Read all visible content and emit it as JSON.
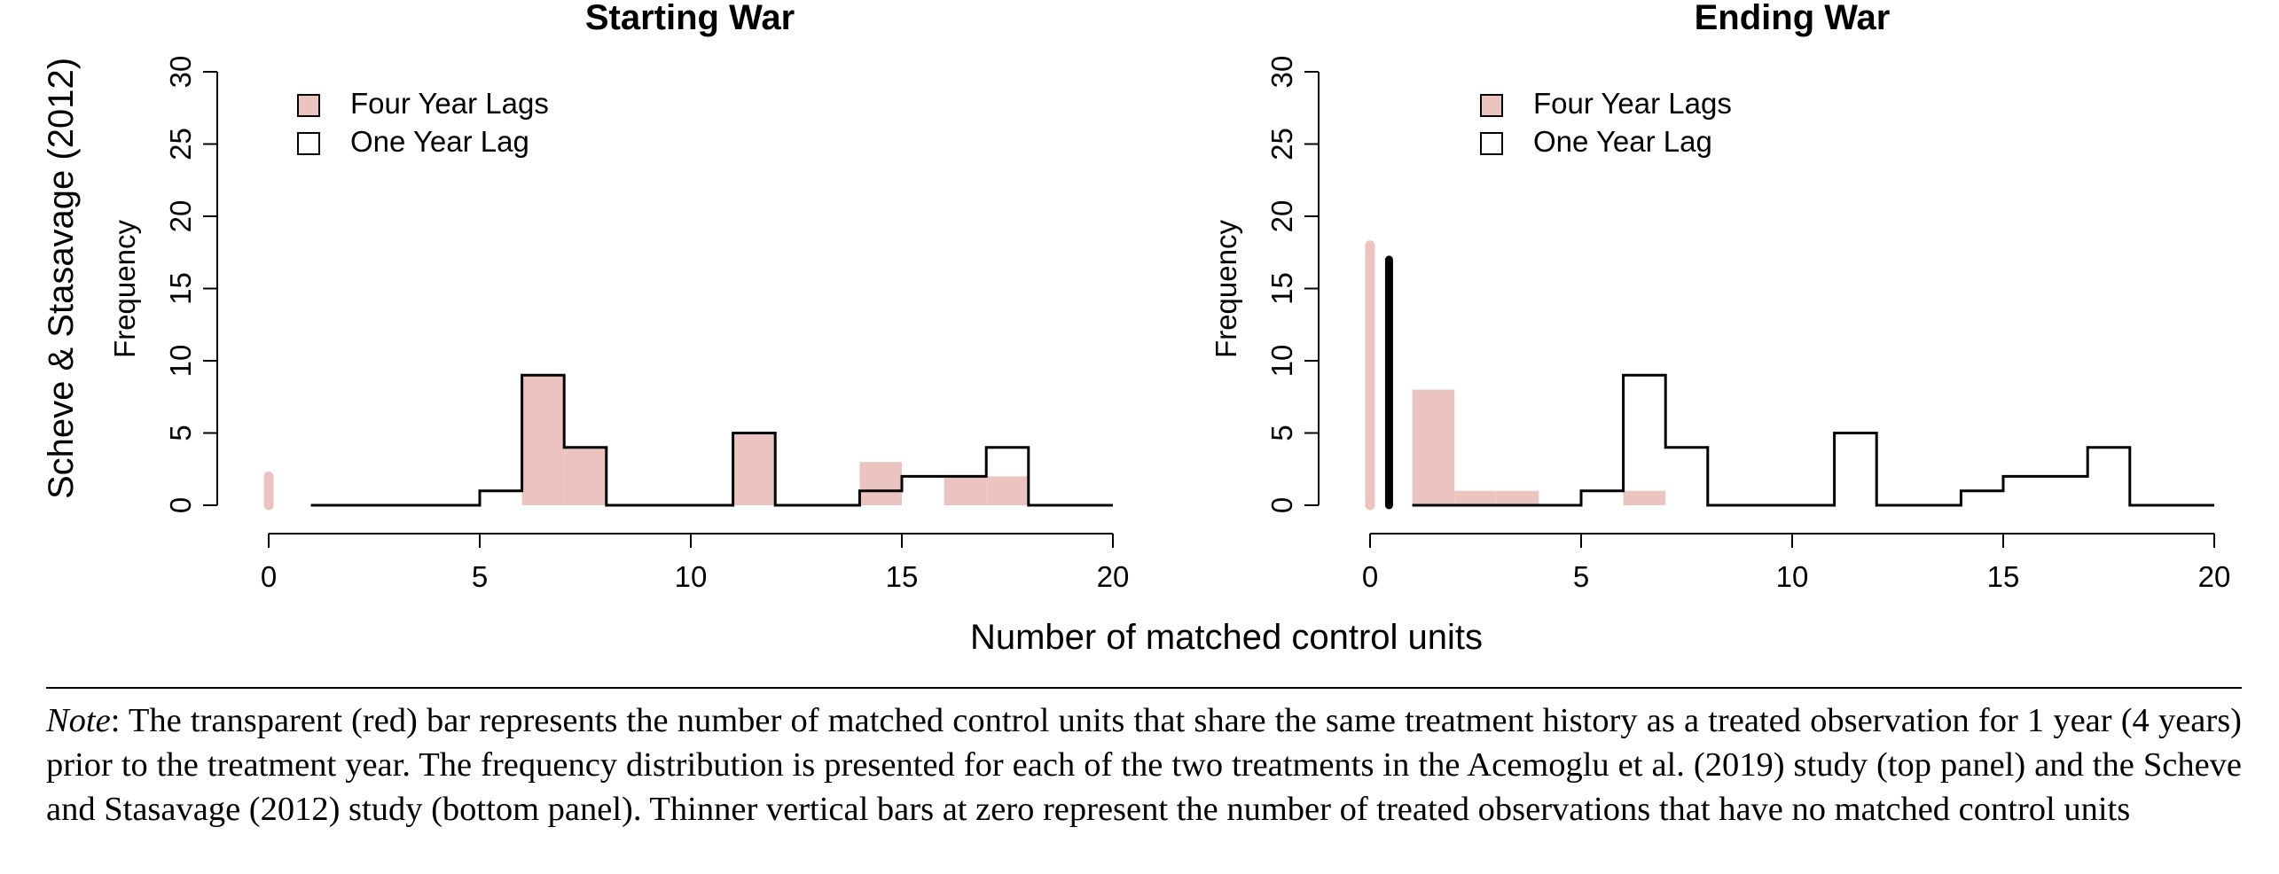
{
  "row_label": "Scheve & Stasavage (2012)",
  "shared_xlabel": "Number of matched control units",
  "colors": {
    "four_year_fill": "#ebc4c0",
    "one_year_stroke": "#000000",
    "axis": "#000000"
  },
  "chart_data": [
    {
      "type": "histogram",
      "title": "Starting War",
      "ylabel": "Frequency",
      "xlim": [
        0,
        20
      ],
      "ylim": [
        0,
        30
      ],
      "xticks": [
        0,
        5,
        10,
        15,
        20
      ],
      "yticks": [
        0,
        5,
        10,
        15,
        20,
        25,
        30
      ],
      "legend": {
        "position": "top-left",
        "entries": [
          "Four Year Lags",
          "One Year Lag"
        ]
      },
      "series": [
        {
          "name": "Four Year Lags",
          "style": "filled",
          "bins": [
            {
              "x0": 5,
              "x1": 6,
              "count": 0
            },
            {
              "x0": 6,
              "x1": 7,
              "count": 9
            },
            {
              "x0": 7,
              "x1": 8,
              "count": 4
            },
            {
              "x0": 11,
              "x1": 12,
              "count": 5
            },
            {
              "x0": 14,
              "x1": 15,
              "count": 3
            },
            {
              "x0": 16,
              "x1": 17,
              "count": 2
            },
            {
              "x0": 17,
              "x1": 18,
              "count": 2
            }
          ],
          "zero_bar": 2
        },
        {
          "name": "One Year Lag",
          "style": "outline",
          "bins": [
            {
              "x0": 1,
              "x1": 2,
              "count": 0
            },
            {
              "x0": 2,
              "x1": 3,
              "count": 0
            },
            {
              "x0": 3,
              "x1": 4,
              "count": 0
            },
            {
              "x0": 4,
              "x1": 5,
              "count": 0
            },
            {
              "x0": 5,
              "x1": 6,
              "count": 1
            },
            {
              "x0": 6,
              "x1": 7,
              "count": 9
            },
            {
              "x0": 7,
              "x1": 8,
              "count": 4
            },
            {
              "x0": 8,
              "x1": 9,
              "count": 0
            },
            {
              "x0": 9,
              "x1": 10,
              "count": 0
            },
            {
              "x0": 10,
              "x1": 11,
              "count": 0
            },
            {
              "x0": 11,
              "x1": 12,
              "count": 5
            },
            {
              "x0": 12,
              "x1": 13,
              "count": 0
            },
            {
              "x0": 13,
              "x1": 14,
              "count": 0
            },
            {
              "x0": 14,
              "x1": 15,
              "count": 1
            },
            {
              "x0": 15,
              "x1": 16,
              "count": 2
            },
            {
              "x0": 16,
              "x1": 17,
              "count": 2
            },
            {
              "x0": 17,
              "x1": 18,
              "count": 4
            },
            {
              "x0": 18,
              "x1": 19,
              "count": 0
            },
            {
              "x0": 19,
              "x1": 20,
              "count": 0
            }
          ],
          "zero_bar": 0
        }
      ]
    },
    {
      "type": "histogram",
      "title": "Ending War",
      "ylabel": "Frequency",
      "xlim": [
        0,
        20
      ],
      "ylim": [
        0,
        30
      ],
      "xticks": [
        0,
        5,
        10,
        15,
        20
      ],
      "yticks": [
        0,
        5,
        10,
        15,
        20,
        25,
        30
      ],
      "legend": {
        "position": "top-left",
        "entries": [
          "Four Year Lags",
          "One Year Lag"
        ]
      },
      "series": [
        {
          "name": "Four Year Lags",
          "style": "filled",
          "bins": [
            {
              "x0": 1,
              "x1": 2,
              "count": 8
            },
            {
              "x0": 2,
              "x1": 3,
              "count": 1
            },
            {
              "x0": 3,
              "x1": 4,
              "count": 1
            },
            {
              "x0": 6,
              "x1": 7,
              "count": 1
            }
          ],
          "zero_bar": 18
        },
        {
          "name": "One Year Lag",
          "style": "outline",
          "bins": [
            {
              "x0": 1,
              "x1": 2,
              "count": 0
            },
            {
              "x0": 2,
              "x1": 3,
              "count": 0
            },
            {
              "x0": 3,
              "x1": 4,
              "count": 0
            },
            {
              "x0": 4,
              "x1": 5,
              "count": 0
            },
            {
              "x0": 5,
              "x1": 6,
              "count": 1
            },
            {
              "x0": 6,
              "x1": 7,
              "count": 9
            },
            {
              "x0": 7,
              "x1": 8,
              "count": 4
            },
            {
              "x0": 8,
              "x1": 9,
              "count": 0
            },
            {
              "x0": 9,
              "x1": 10,
              "count": 0
            },
            {
              "x0": 10,
              "x1": 11,
              "count": 0
            },
            {
              "x0": 11,
              "x1": 12,
              "count": 5
            },
            {
              "x0": 12,
              "x1": 13,
              "count": 0
            },
            {
              "x0": 13,
              "x1": 14,
              "count": 0
            },
            {
              "x0": 14,
              "x1": 15,
              "count": 1
            },
            {
              "x0": 15,
              "x1": 16,
              "count": 2
            },
            {
              "x0": 16,
              "x1": 17,
              "count": 2
            },
            {
              "x0": 17,
              "x1": 18,
              "count": 4
            },
            {
              "x0": 18,
              "x1": 19,
              "count": 0
            },
            {
              "x0": 19,
              "x1": 20,
              "count": 0
            }
          ],
          "zero_bar": 17
        }
      ]
    }
  ],
  "note": {
    "lead": "Note",
    "text": ": The transparent (red) bar represents the number of matched control units that share the same treatment history as a treated observation for 1 year (4 years) prior to the treatment year. The frequency distribution is presented for each of the two treatments in the Acemoglu et al. (2019) study (top panel) and the Scheve and Stasavage (2012) study (bottom panel). Thinner vertical bars at zero represent the number of treated observations that have no matched control units"
  }
}
